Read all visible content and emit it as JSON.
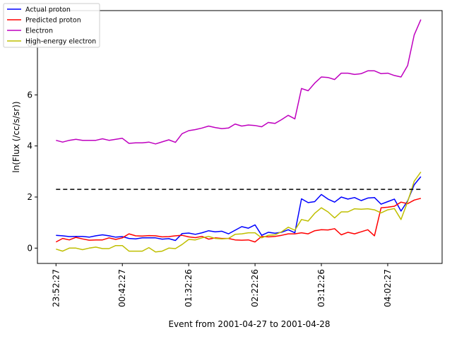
{
  "chart_data": {
    "type": "line",
    "title": "",
    "xlabel": "Event from 2001-04-27 to 2001-04-28",
    "ylabel": "ln(Flux (/cc/s/sr))",
    "x_tick_labels": [
      "23:52:27",
      "00:42:27",
      "01:32:26",
      "02:22:26",
      "03:12:26",
      "04:02:27"
    ],
    "x_tick_index": [
      0,
      10,
      20,
      30,
      40,
      50
    ],
    "y_ticks": [
      "0",
      "2",
      "4",
      "6",
      "8"
    ],
    "ylim": [
      -0.6,
      9.3
    ],
    "xlim_index": [
      -2.8,
      58.2
    ],
    "grid": false,
    "legend_placement": "top-left",
    "threshold": {
      "value": 2.3,
      "style": "dashed",
      "color": "#000000"
    },
    "series": [
      {
        "name": "Actual proton",
        "color": "#0000ff",
        "values": [
          0.5,
          0.48,
          0.45,
          0.46,
          0.46,
          0.43,
          0.48,
          0.52,
          0.48,
          0.43,
          0.45,
          0.38,
          0.36,
          0.4,
          0.4,
          0.4,
          0.35,
          0.37,
          0.3,
          0.57,
          0.59,
          0.54,
          0.6,
          0.68,
          0.64,
          0.66,
          0.56,
          0.7,
          0.84,
          0.78,
          0.91,
          0.5,
          0.62,
          0.58,
          0.62,
          0.72,
          0.6,
          1.93,
          1.78,
          1.82,
          2.1,
          1.92,
          1.8,
          2.0,
          1.92,
          1.98,
          1.86,
          1.96,
          1.98,
          1.72,
          1.82,
          1.92,
          1.45,
          1.85,
          2.48,
          2.8
        ]
      },
      {
        "name": "Predicted proton",
        "color": "#ff0000",
        "values": [
          0.24,
          0.38,
          0.32,
          0.42,
          0.36,
          0.31,
          0.32,
          0.32,
          0.4,
          0.34,
          0.4,
          0.56,
          0.48,
          0.47,
          0.49,
          0.48,
          0.44,
          0.45,
          0.48,
          0.5,
          0.44,
          0.41,
          0.46,
          0.35,
          0.4,
          0.38,
          0.38,
          0.32,
          0.31,
          0.32,
          0.24,
          0.46,
          0.44,
          0.46,
          0.5,
          0.56,
          0.56,
          0.6,
          0.56,
          0.68,
          0.72,
          0.71,
          0.76,
          0.52,
          0.62,
          0.56,
          0.64,
          0.72,
          0.48,
          1.58,
          1.6,
          1.64,
          1.8,
          1.74,
          1.88,
          1.95
        ]
      },
      {
        "name": "Electron",
        "color": "#bf00bf",
        "values": [
          4.22,
          4.15,
          4.22,
          4.26,
          4.22,
          4.22,
          4.22,
          4.28,
          4.22,
          4.26,
          4.3,
          4.1,
          4.12,
          4.12,
          4.15,
          4.08,
          4.16,
          4.24,
          4.14,
          4.48,
          4.6,
          4.64,
          4.7,
          4.78,
          4.72,
          4.68,
          4.7,
          4.86,
          4.78,
          4.82,
          4.8,
          4.75,
          4.92,
          4.88,
          5.03,
          5.2,
          5.06,
          6.25,
          6.16,
          6.46,
          6.7,
          6.68,
          6.6,
          6.85,
          6.85,
          6.8,
          6.83,
          6.94,
          6.94,
          6.83,
          6.85,
          6.76,
          6.7,
          7.15,
          8.35,
          8.95
        ]
      },
      {
        "name": "High-energy electron",
        "color": "#bfbf00",
        "values": [
          -0.04,
          -0.12,
          0.0,
          0.0,
          -0.06,
          0.0,
          0.04,
          -0.02,
          -0.02,
          0.1,
          0.1,
          -0.12,
          -0.12,
          -0.12,
          0.02,
          -0.15,
          -0.12,
          0.0,
          -0.02,
          0.14,
          0.34,
          0.32,
          0.4,
          0.46,
          0.38,
          0.36,
          0.38,
          0.54,
          0.56,
          0.6,
          0.6,
          0.4,
          0.5,
          0.52,
          0.64,
          0.82,
          0.7,
          1.12,
          1.06,
          1.36,
          1.58,
          1.42,
          1.18,
          1.42,
          1.42,
          1.54,
          1.52,
          1.54,
          1.5,
          1.38,
          1.5,
          1.55,
          1.12,
          1.82,
          2.62,
          2.98
        ]
      }
    ]
  }
}
